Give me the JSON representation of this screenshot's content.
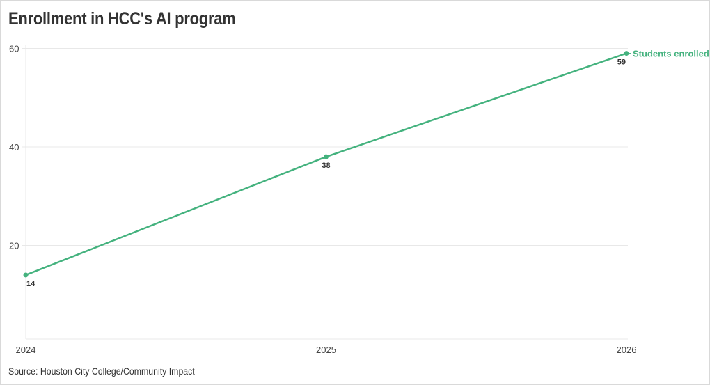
{
  "title": "Enrollment in HCC's AI program",
  "source": "Source: Houston City College/Community Impact",
  "colors": {
    "line": "#44b27e",
    "grid": "#e8e8e8",
    "text": "#333333"
  },
  "chart_data": {
    "type": "line",
    "title": "Enrollment in HCC's AI program",
    "xlabel": "",
    "ylabel": "",
    "categories": [
      "2024",
      "2025",
      "2026"
    ],
    "series": [
      {
        "name": "Students enrolled",
        "values": [
          14,
          38,
          59
        ],
        "color": "#44b27e"
      }
    ],
    "yticks": [
      20,
      40,
      60
    ],
    "ylim": [
      1,
      60
    ],
    "grid": true,
    "legend_position": "inline-end-of-line",
    "data_labels": [
      "14",
      "38",
      "59"
    ]
  }
}
